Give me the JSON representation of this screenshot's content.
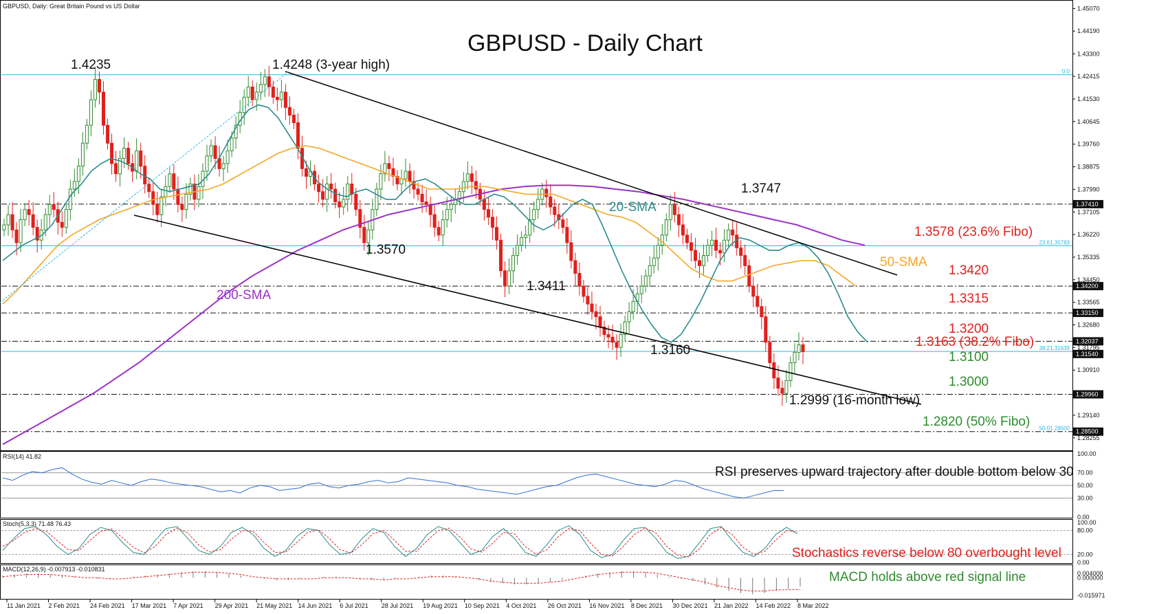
{
  "header": {
    "symbol_info": "GBPUSD, Daily:  Great Britain Pound vs US Dollar",
    "title": "GBPUSD - Daily Chart"
  },
  "colors": {
    "background": "#ffffff",
    "bull_candle": "#2e8b2e",
    "bear_candle": "#e0201c",
    "sma20": "#2a8c8c",
    "sma50": "#f5a623",
    "sma200": "#9b30c8",
    "fibo_line": "#27b6e6",
    "channel_line": "#000000",
    "annotation_red": "#e0201c",
    "annotation_green": "#2e8b2e",
    "annotation_purple": "#9b30c8",
    "indicator_blue": "#2f6fd6",
    "macd_signal": "#e0201c"
  },
  "chart_data": [
    {
      "type": "candlestick",
      "title": "GBPUSD - Daily Chart",
      "ylim": [
        1.279,
        1.453
      ],
      "x_ticks": [
        "11 Jan 2021",
        "2 Feb 2021",
        "24 Feb 2021",
        "17 Mar 2021",
        "7 Apr 2021",
        "29 Apr 2021",
        "21 May 2021",
        "14 Jun 2021",
        "6 Jul 2021",
        "28 Jul 2021",
        "19 Aug 2021",
        "10 Sep 2021",
        "4 Oct 2021",
        "26 Oct 2021",
        "16 Nov 2021",
        "8 Dec 2021",
        "30 Dec 2021",
        "21 Jan 2022",
        "14 Feb 2022",
        "8 Mar 2022"
      ],
      "y_ticks": [
        "1.45070",
        "1.44190",
        "1.43300",
        "1.42415",
        "1.41530",
        "1.40645",
        "1.39760",
        "1.38875",
        "1.37990",
        "1.37105",
        "1.36220",
        "1.35335",
        "1.34450",
        "1.33565",
        "1.32680",
        "1.31795",
        "1.30910",
        "1.30025",
        "1.29140",
        "1.28255"
      ],
      "price_tags": [
        {
          "value": 1.3741,
          "label": "1.37410"
        },
        {
          "value": 1.342,
          "label": "1.34200"
        },
        {
          "value": 1.3315,
          "label": "1.33150"
        },
        {
          "value": 1.32037,
          "label": "1.32037"
        },
        {
          "value": 1.3154,
          "label": "1.31540"
        },
        {
          "value": 1.2996,
          "label": "1.29960"
        },
        {
          "value": 1.285,
          "label": "1.28500"
        }
      ],
      "fibo_labels": [
        {
          "value": 1.4248,
          "label": "0.0"
        },
        {
          "value": 1.35783,
          "label": "23.61.35783"
        },
        {
          "value": 1.31639,
          "label": "38.21.31639"
        },
        {
          "value": 1.285,
          "label": "50.01.28500"
        }
      ],
      "closes": [
        1.366,
        1.37,
        1.364,
        1.359,
        1.368,
        1.372,
        1.37,
        1.365,
        1.36,
        1.364,
        1.37,
        1.374,
        1.372,
        1.367,
        1.365,
        1.372,
        1.38,
        1.383,
        1.389,
        1.398,
        1.405,
        1.415,
        1.423,
        1.418,
        1.405,
        1.398,
        1.39,
        1.386,
        1.392,
        1.396,
        1.39,
        1.387,
        1.395,
        1.389,
        1.382,
        1.379,
        1.374,
        1.37,
        1.377,
        1.381,
        1.386,
        1.38,
        1.374,
        1.372,
        1.378,
        1.382,
        1.376,
        1.381,
        1.387,
        1.393,
        1.397,
        1.392,
        1.388,
        1.39,
        1.395,
        1.4,
        1.405,
        1.41,
        1.416,
        1.42,
        1.415,
        1.418,
        1.421,
        1.424,
        1.42,
        1.416,
        1.415,
        1.418,
        1.412,
        1.409,
        1.406,
        1.396,
        1.388,
        1.385,
        1.387,
        1.382,
        1.379,
        1.376,
        1.382,
        1.38,
        1.375,
        1.373,
        1.376,
        1.382,
        1.378,
        1.372,
        1.365,
        1.359,
        1.364,
        1.372,
        1.38,
        1.386,
        1.39,
        1.388,
        1.385,
        1.382,
        1.384,
        1.387,
        1.383,
        1.38,
        1.378,
        1.375,
        1.374,
        1.37,
        1.365,
        1.362,
        1.368,
        1.372,
        1.374,
        1.376,
        1.379,
        1.383,
        1.386,
        1.383,
        1.38,
        1.376,
        1.372,
        1.369,
        1.365,
        1.36,
        1.348,
        1.342,
        1.348,
        1.354,
        1.358,
        1.361,
        1.362,
        1.368,
        1.372,
        1.376,
        1.38,
        1.377,
        1.373,
        1.37,
        1.368,
        1.365,
        1.359,
        1.352,
        1.347,
        1.342,
        1.338,
        1.335,
        1.332,
        1.33,
        1.326,
        1.323,
        1.322,
        1.32,
        1.318,
        1.323,
        1.328,
        1.332,
        1.336,
        1.339,
        1.342,
        1.346,
        1.35,
        1.353,
        1.358,
        1.362,
        1.368,
        1.374,
        1.37,
        1.366,
        1.362,
        1.359,
        1.356,
        1.352,
        1.35,
        1.354,
        1.358,
        1.36,
        1.356,
        1.355,
        1.36,
        1.364,
        1.362,
        1.357,
        1.354,
        1.35,
        1.342,
        1.338,
        1.334,
        1.33,
        1.32,
        1.312,
        1.306,
        1.302,
        1.3,
        1.305,
        1.312,
        1.316,
        1.319,
        1.3163
      ],
      "sma20": [
        1.352,
        1.355,
        1.358,
        1.36,
        1.362,
        1.366,
        1.372,
        1.378,
        1.382,
        1.387,
        1.39,
        1.392,
        1.391,
        1.389,
        1.386,
        1.384,
        1.38,
        1.379,
        1.38,
        1.381,
        1.382,
        1.386,
        1.392,
        1.399,
        1.406,
        1.411,
        1.413,
        1.412,
        1.408,
        1.402,
        1.396,
        1.389,
        1.383,
        1.38,
        1.378,
        1.377,
        1.379,
        1.38,
        1.378,
        1.376,
        1.376,
        1.38,
        1.383,
        1.384,
        1.382,
        1.379,
        1.376,
        1.374,
        1.374,
        1.376,
        1.378,
        1.377,
        1.374,
        1.37,
        1.366,
        1.364,
        1.366,
        1.37,
        1.374,
        1.376,
        1.374,
        1.366,
        1.357,
        1.348,
        1.34,
        1.333,
        1.327,
        1.322,
        1.32,
        1.323,
        1.329,
        1.336,
        1.344,
        1.352,
        1.358,
        1.361,
        1.36,
        1.358,
        1.356,
        1.356,
        1.358,
        1.359,
        1.357,
        1.353,
        1.347,
        1.339,
        1.33,
        1.324,
        1.32
      ],
      "sma50": [
        1.335,
        1.34,
        1.346,
        1.352,
        1.358,
        1.362,
        1.365,
        1.368,
        1.37,
        1.372,
        1.374,
        1.376,
        1.377,
        1.378,
        1.379,
        1.38,
        1.382,
        1.385,
        1.388,
        1.391,
        1.394,
        1.396,
        1.397,
        1.396,
        1.394,
        1.392,
        1.39,
        1.388,
        1.386,
        1.384,
        1.382,
        1.38,
        1.38,
        1.38,
        1.381,
        1.381,
        1.38,
        1.379,
        1.378,
        1.378,
        1.378,
        1.376,
        1.374,
        1.372,
        1.37,
        1.369,
        1.367,
        1.363,
        1.359,
        1.354,
        1.349,
        1.346,
        1.344,
        1.344,
        1.346,
        1.348,
        1.35,
        1.351,
        1.352,
        1.352,
        1.35,
        1.346,
        1.342
      ],
      "sma200": [
        1.28,
        1.285,
        1.29,
        1.295,
        1.3,
        1.306,
        1.312,
        1.319,
        1.326,
        1.333,
        1.34,
        1.346,
        1.351,
        1.356,
        1.36,
        1.364,
        1.367,
        1.37,
        1.372,
        1.374,
        1.376,
        1.378,
        1.38,
        1.381,
        1.3815,
        1.3815,
        1.381,
        1.38,
        1.379,
        1.3775,
        1.376,
        1.374,
        1.372,
        1.37,
        1.368,
        1.366,
        1.363,
        1.36,
        1.358
      ],
      "annotations": {
        "high_2021_feb": "1.4235",
        "high_3y": "1.4248 (3-year high)",
        "low_jul": "1.3570",
        "low_oct": "1.3411",
        "low_dec": "1.3160",
        "high_jan": "1.3747",
        "low_mar": "1.2999 (16-month low)",
        "sma20_label": "20-SMA",
        "sma50_label": "50-SMA",
        "sma200_label": "200-SMA",
        "lvl_13578": "1.3578 (23.6% Fibo)",
        "lvl_13420": "1.3420",
        "lvl_13315": "1.3315",
        "lvl_13200": "1.3200",
        "lvl_13163": "1.3163 (38.2% Fibo)",
        "lvl_13100": "1.3100",
        "lvl_13000": "1.3000",
        "lvl_12820": "1.2820 (50% Fibo)"
      }
    },
    {
      "type": "line",
      "title": "RSI(14) 41.82",
      "ylim": [
        0,
        100
      ],
      "y_ticks": [
        "100.00",
        "70.00",
        "50.00",
        "30.00",
        "0.00"
      ],
      "levels": [
        70,
        50,
        30
      ],
      "annotation": "RSI preserves upward trajectory after double bottom below 30",
      "values": [
        62,
        58,
        66,
        72,
        70,
        75,
        78,
        68,
        60,
        55,
        52,
        58,
        54,
        50,
        56,
        60,
        58,
        54,
        52,
        50,
        48,
        44,
        40,
        42,
        38,
        46,
        50,
        48,
        42,
        44,
        46,
        52,
        54,
        48,
        46,
        50,
        52,
        56,
        58,
        54,
        56,
        62,
        60,
        58,
        56,
        54,
        50,
        48,
        44,
        42,
        40,
        38,
        36,
        40,
        44,
        48,
        50,
        56,
        62,
        66,
        68,
        64,
        60,
        56,
        52,
        50,
        48,
        52,
        58,
        56,
        50,
        44,
        40,
        36,
        32,
        30,
        34,
        38,
        42,
        41.82
      ]
    },
    {
      "type": "line",
      "title": "Stoch(5,3,3) 71.48 76.43",
      "ylim": [
        0,
        100
      ],
      "y_ticks": [
        "100.00",
        "80.00",
        "20.00",
        "0.00"
      ],
      "levels": [
        80,
        20
      ],
      "annotation": "Stochastics reverse below 80 overbought level",
      "k_values": [
        30,
        60,
        85,
        90,
        70,
        40,
        20,
        35,
        70,
        88,
        80,
        50,
        25,
        20,
        55,
        85,
        90,
        60,
        30,
        20,
        40,
        75,
        88,
        70,
        35,
        15,
        30,
        65,
        85,
        80,
        45,
        20,
        25,
        60,
        85,
        75,
        40,
        15,
        35,
        70,
        90,
        80,
        50,
        20,
        30,
        65,
        85,
        60,
        25,
        15,
        45,
        80,
        92,
        70,
        30,
        12,
        20,
        55,
        85,
        88,
        60,
        25,
        10,
        15,
        50,
        85,
        90,
        55,
        25,
        15,
        35,
        70,
        88,
        71.48
      ],
      "d_values": [
        40,
        55,
        75,
        85,
        78,
        55,
        32,
        30,
        55,
        78,
        84,
        62,
        38,
        24,
        40,
        70,
        86,
        74,
        44,
        26,
        32,
        58,
        80,
        78,
        50,
        25,
        26,
        50,
        75,
        82,
        60,
        32,
        24,
        45,
        72,
        80,
        55,
        28,
        28,
        55,
        80,
        86,
        64,
        34,
        26,
        48,
        75,
        72,
        40,
        20,
        32,
        64,
        85,
        80,
        48,
        20,
        16,
        40,
        70,
        86,
        74,
        40,
        18,
        14,
        34,
        70,
        88,
        70,
        38,
        20,
        28,
        56,
        80,
        76.43
      ]
    },
    {
      "type": "bar",
      "title": "MACD(12,26,9) -0.007913 -0.010831",
      "ylim": [
        -0.0185,
        0.0108
      ],
      "y_ticks": [
        "0.004000",
        "0.000000",
        "-0.015971"
      ],
      "annotation": "MACD holds above red signal line",
      "histogram": [
        0.002,
        0.003,
        0.004,
        0.004,
        0.003,
        0.002,
        0.001,
        0.0,
        -0.001,
        -0.001,
        0.0,
        0.001,
        0.002,
        0.003,
        0.004,
        0.005,
        0.006,
        0.006,
        0.005,
        0.004,
        0.002,
        0.0,
        -0.001,
        -0.002,
        -0.002,
        -0.001,
        0.0,
        0.001,
        0.001,
        0.0,
        -0.001,
        -0.002,
        -0.002,
        -0.001,
        0.0,
        0.001,
        0.002,
        0.002,
        0.001,
        0.0,
        -0.002,
        -0.004,
        -0.005,
        -0.006,
        -0.006,
        -0.005,
        -0.004,
        -0.002,
        0.0,
        0.002,
        0.004,
        0.005,
        0.006,
        0.006,
        0.005,
        0.003,
        0.001,
        -0.001,
        -0.003,
        -0.006,
        -0.009,
        -0.012,
        -0.014,
        -0.015,
        -0.014,
        -0.012,
        -0.01,
        -0.007913
      ],
      "signal": [
        0.001,
        0.002,
        0.003,
        0.003,
        0.003,
        0.002,
        0.001,
        0.0,
        0.0,
        -0.001,
        -0.001,
        0.0,
        0.001,
        0.002,
        0.003,
        0.004,
        0.005,
        0.005,
        0.005,
        0.004,
        0.003,
        0.001,
        0.0,
        -0.001,
        -0.001,
        -0.001,
        -0.001,
        0.0,
        0.0,
        0.0,
        -0.001,
        -0.001,
        -0.002,
        -0.001,
        -0.001,
        0.0,
        0.001,
        0.001,
        0.001,
        0.0,
        -0.001,
        -0.003,
        -0.004,
        -0.005,
        -0.005,
        -0.005,
        -0.004,
        -0.003,
        -0.001,
        0.001,
        0.003,
        0.004,
        0.005,
        0.005,
        0.005,
        0.004,
        0.002,
        0.0,
        -0.002,
        -0.004,
        -0.007,
        -0.009,
        -0.011,
        -0.012,
        -0.012,
        -0.011,
        -0.0108,
        -0.010831
      ]
    }
  ]
}
